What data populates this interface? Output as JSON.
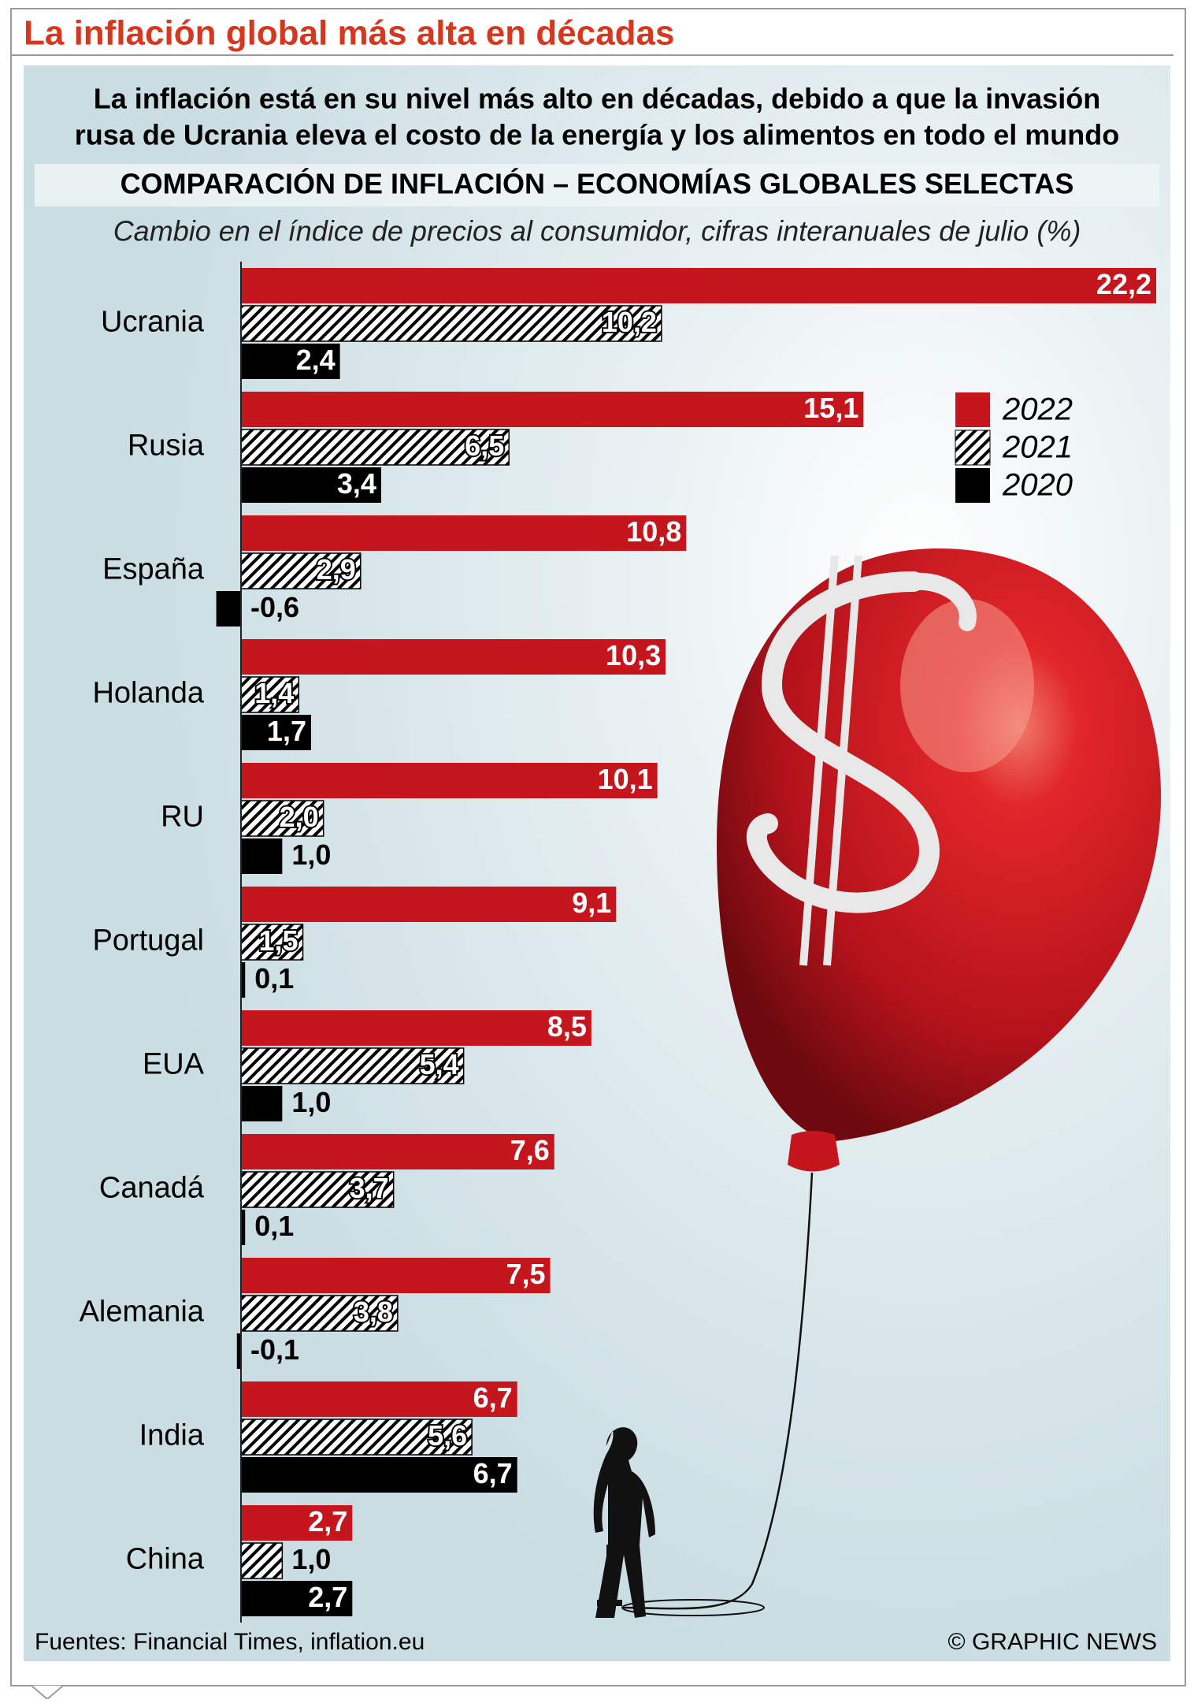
{
  "chart_data": {
    "type": "hbar",
    "title": "La inflación global más alta en décadas",
    "subtitle": [
      "La inflación está en su nivel más alto en décadas, debido a que la invasión",
      "rusa de Ucrania eleva el costo de la energía y los alimentos en todo el mundo"
    ],
    "heading": "COMPARACIÓN DE INFLACIÓN – ECONOMÍAS GLOBALES SELECTAS",
    "axis_label": "Cambio en el índice de precios al consumidor, cifras interanuales de julio (%)",
    "categories": [
      "Ucrania",
      "Rusia",
      "España",
      "Holanda",
      "RU",
      "Portugal",
      "EUA",
      "Canadá",
      "Alemania",
      "India",
      "China"
    ],
    "series": [
      {
        "name": "2022",
        "color": "#c4161c",
        "values": [
          22.2,
          15.1,
          10.8,
          10.3,
          10.1,
          9.1,
          8.5,
          7.6,
          7.5,
          6.7,
          2.7
        ],
        "value_labels": [
          "22,2",
          "15,1",
          "10,8",
          "10,3",
          "10,1",
          "9,1",
          "8,5",
          "7,6",
          "7,5",
          "6,7",
          "2,7"
        ]
      },
      {
        "name": "2021",
        "color": "#000000",
        "hatch": true,
        "values": [
          10.2,
          6.5,
          2.9,
          1.4,
          2.0,
          1.5,
          5.4,
          3.7,
          3.8,
          5.6,
          1.0
        ],
        "value_labels": [
          "10,2",
          "6,5",
          "2,9",
          "1,4",
          "2,0",
          "1,5",
          "5,4",
          "3,7",
          "3,8",
          "5,6",
          "1,0"
        ]
      },
      {
        "name": "2020",
        "color": "#000000",
        "values": [
          2.4,
          3.4,
          -0.6,
          1.7,
          1.0,
          0.1,
          1.0,
          0.1,
          -0.1,
          6.7,
          2.7
        ],
        "value_labels": [
          "2,4",
          "3,4",
          "-0,6",
          "1,7",
          "1,0",
          "0,1",
          "1,0",
          "0,1",
          "-0,1",
          "6,7",
          "2,7"
        ]
      }
    ],
    "legend": "right",
    "source": "Fuentes: Financial Times, inflation.eu",
    "credit": "© GRAPHIC NEWS"
  }
}
